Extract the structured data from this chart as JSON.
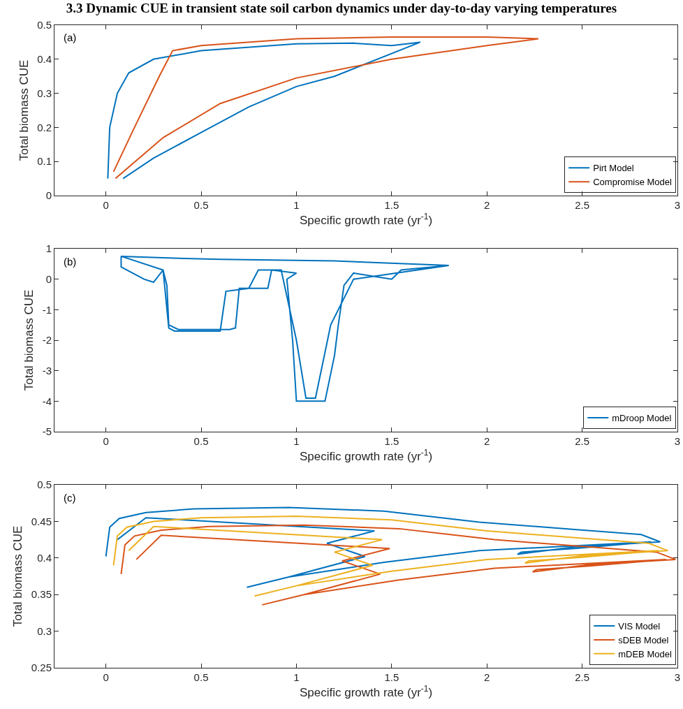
{
  "chart_data": [
    {
      "type": "line",
      "title": "3.3 Dynamic CUE in transient state soil carbon dynamics under day-to-day varying temperatures",
      "xlabel": "Specific growth rate (yr$^{-1}$)",
      "ylabel": "Total biomass CUE",
      "annotations": [
        "(a)"
      ],
      "xlim": [
        -0.27,
        3
      ],
      "xticks": [
        0,
        0.5,
        1,
        1.5,
        2,
        2.5,
        3
      ],
      "ylim": [
        0,
        0.5
      ],
      "yticks": [
        0,
        0.1,
        0.2,
        0.3,
        0.4,
        0.5
      ],
      "grid": false,
      "legend": "bottom right",
      "series": [
        {
          "name": "Pirt Model",
          "color": "#0072bd",
          "x": [
            0.01,
            0.02,
            0.06,
            0.12,
            0.25,
            0.5,
            1,
            1.3,
            1.5,
            1.65,
            1.2,
            1,
            0.75,
            0.5,
            0.25,
            0.09
          ],
          "values": [
            0.05,
            0.2,
            0.3,
            0.36,
            0.4,
            0.425,
            0.445,
            0.447,
            0.44,
            0.45,
            0.35,
            0.32,
            0.26,
            0.185,
            0.11,
            0.05
          ]
        },
        {
          "name": "Compromise Model",
          "color": "#d95319",
          "x": [
            0.05,
            0.3,
            0.6,
            1,
            1.5,
            2,
            2.27,
            2,
            1.5,
            1,
            0.5,
            0.35,
            0.28,
            0.15,
            0.04
          ],
          "values": [
            0.05,
            0.17,
            0.27,
            0.345,
            0.4,
            0.44,
            0.46,
            0.465,
            0.465,
            0.46,
            0.44,
            0.425,
            0.35,
            0.2,
            0.07
          ]
        }
      ]
    },
    {
      "type": "line",
      "xlabel": "Specific growth rate (yr$^{-1}$)",
      "ylabel": "Total biomass CUE",
      "annotations": [
        "(b)"
      ],
      "xlim": [
        -0.27,
        3
      ],
      "xticks": [
        0,
        0.5,
        1,
        1.5,
        2,
        2.5,
        3
      ],
      "ylim": [
        -5,
        1
      ],
      "yticks": [
        -5,
        -4,
        -3,
        -2,
        -1,
        0,
        1
      ],
      "grid": false,
      "legend": "bottom right",
      "series": [
        {
          "name": "mDroop Model",
          "color": "#0072bd",
          "x": [
            0.08,
            0.08,
            0.2,
            0.25,
            0.3,
            0.32,
            0.33,
            0.38,
            0.65,
            0.68,
            0.7,
            0.85,
            0.87,
            1.0,
            0.95,
            0.98,
            1.0,
            1.15,
            1.2,
            1.22,
            1.25,
            1.3,
            1.5,
            1.55,
            1.8,
            1.2,
            0.6,
            0.3,
            0.08,
            0.3,
            0.33,
            0.36,
            0.42,
            0.6,
            0.63,
            0.75,
            0.8,
            0.92,
            1.0,
            1.05,
            1.1,
            1.18,
            1.3,
            1.8
          ],
          "values": [
            0.75,
            0.4,
            0.0,
            -0.1,
            0.3,
            -0.2,
            -1.5,
            -1.65,
            -1.65,
            -1.6,
            -0.3,
            -0.3,
            0.3,
            0.2,
            0.0,
            -2.0,
            -4.0,
            -4.0,
            -2.5,
            -1.5,
            -0.2,
            0.2,
            0.0,
            0.3,
            0.45,
            0.6,
            0.65,
            0.7,
            0.75,
            0.3,
            -1.6,
            -1.7,
            -1.7,
            -1.7,
            -0.4,
            -0.3,
            0.3,
            0.3,
            -2.0,
            -3.9,
            -3.9,
            -1.5,
            0.0,
            0.45
          ]
        }
      ]
    },
    {
      "type": "line",
      "xlabel": "Specific growth rate (yr$^{-1}$)",
      "ylabel": "Total biomass CUE",
      "annotations": [
        "(c)"
      ],
      "xlim": [
        -0.27,
        3
      ],
      "xticks": [
        0,
        0.5,
        1,
        1.5,
        2,
        2.5,
        3
      ],
      "ylim": [
        0.25,
        0.5
      ],
      "yticks": [
        0.25,
        0.3,
        0.35,
        0.4,
        0.45,
        0.5
      ],
      "grid": false,
      "legend": "bottom right",
      "series": [
        {
          "name": "VIS Model",
          "color": "#0072bd",
          "x": [
            0,
            0.02,
            0.07,
            0.21,
            0.46,
            0.96,
            1.46,
            1.96,
            2.46,
            2.81,
            2.91,
            2.46,
            2.16,
            2.18,
            2.46,
            2.86,
            1.96,
            1.46,
            0.96,
            0.74,
            0.96,
            1.36,
            1.16,
            1.41,
            0.21,
            0.06
          ],
          "values": [
            0.402,
            0.442,
            0.454,
            0.462,
            0.467,
            0.469,
            0.464,
            0.449,
            0.439,
            0.432,
            0.422,
            0.415,
            0.405,
            0.408,
            0.413,
            0.422,
            0.41,
            0.394,
            0.374,
            0.36,
            0.374,
            0.402,
            0.42,
            0.437,
            0.455,
            0.425
          ]
        },
        {
          "name": "sDEB Model",
          "color": "#d95319",
          "x": [
            0.08,
            0.1,
            0.15,
            0.29,
            0.54,
            1.04,
            1.54,
            2.04,
            2.54,
            2.89,
            2.99,
            2.54,
            2.24,
            2.26,
            2.54,
            2.94,
            2.04,
            1.54,
            1.04,
            0.82,
            1.04,
            1.44,
            1.24,
            1.49,
            0.29,
            0.16
          ],
          "values": [
            0.378,
            0.418,
            0.43,
            0.438,
            0.443,
            0.445,
            0.44,
            0.425,
            0.415,
            0.408,
            0.398,
            0.391,
            0.381,
            0.384,
            0.389,
            0.398,
            0.386,
            0.37,
            0.35,
            0.336,
            0.35,
            0.378,
            0.396,
            0.413,
            0.431,
            0.398
          ]
        },
        {
          "name": "mDEB Model",
          "color": "#edb120",
          "x": [
            0.04,
            0.06,
            0.11,
            0.25,
            0.5,
            1,
            1.5,
            2,
            2.5,
            2.85,
            2.95,
            2.5,
            2.2,
            2.22,
            2.5,
            2.9,
            2,
            1.5,
            1,
            0.78,
            1.0,
            1.4,
            1.2,
            1.45,
            0.25,
            0.12
          ],
          "values": [
            0.39,
            0.43,
            0.442,
            0.45,
            0.455,
            0.457,
            0.452,
            0.437,
            0.427,
            0.42,
            0.41,
            0.403,
            0.393,
            0.396,
            0.401,
            0.41,
            0.398,
            0.382,
            0.362,
            0.348,
            0.362,
            0.39,
            0.408,
            0.425,
            0.443,
            0.41
          ]
        }
      ]
    }
  ]
}
